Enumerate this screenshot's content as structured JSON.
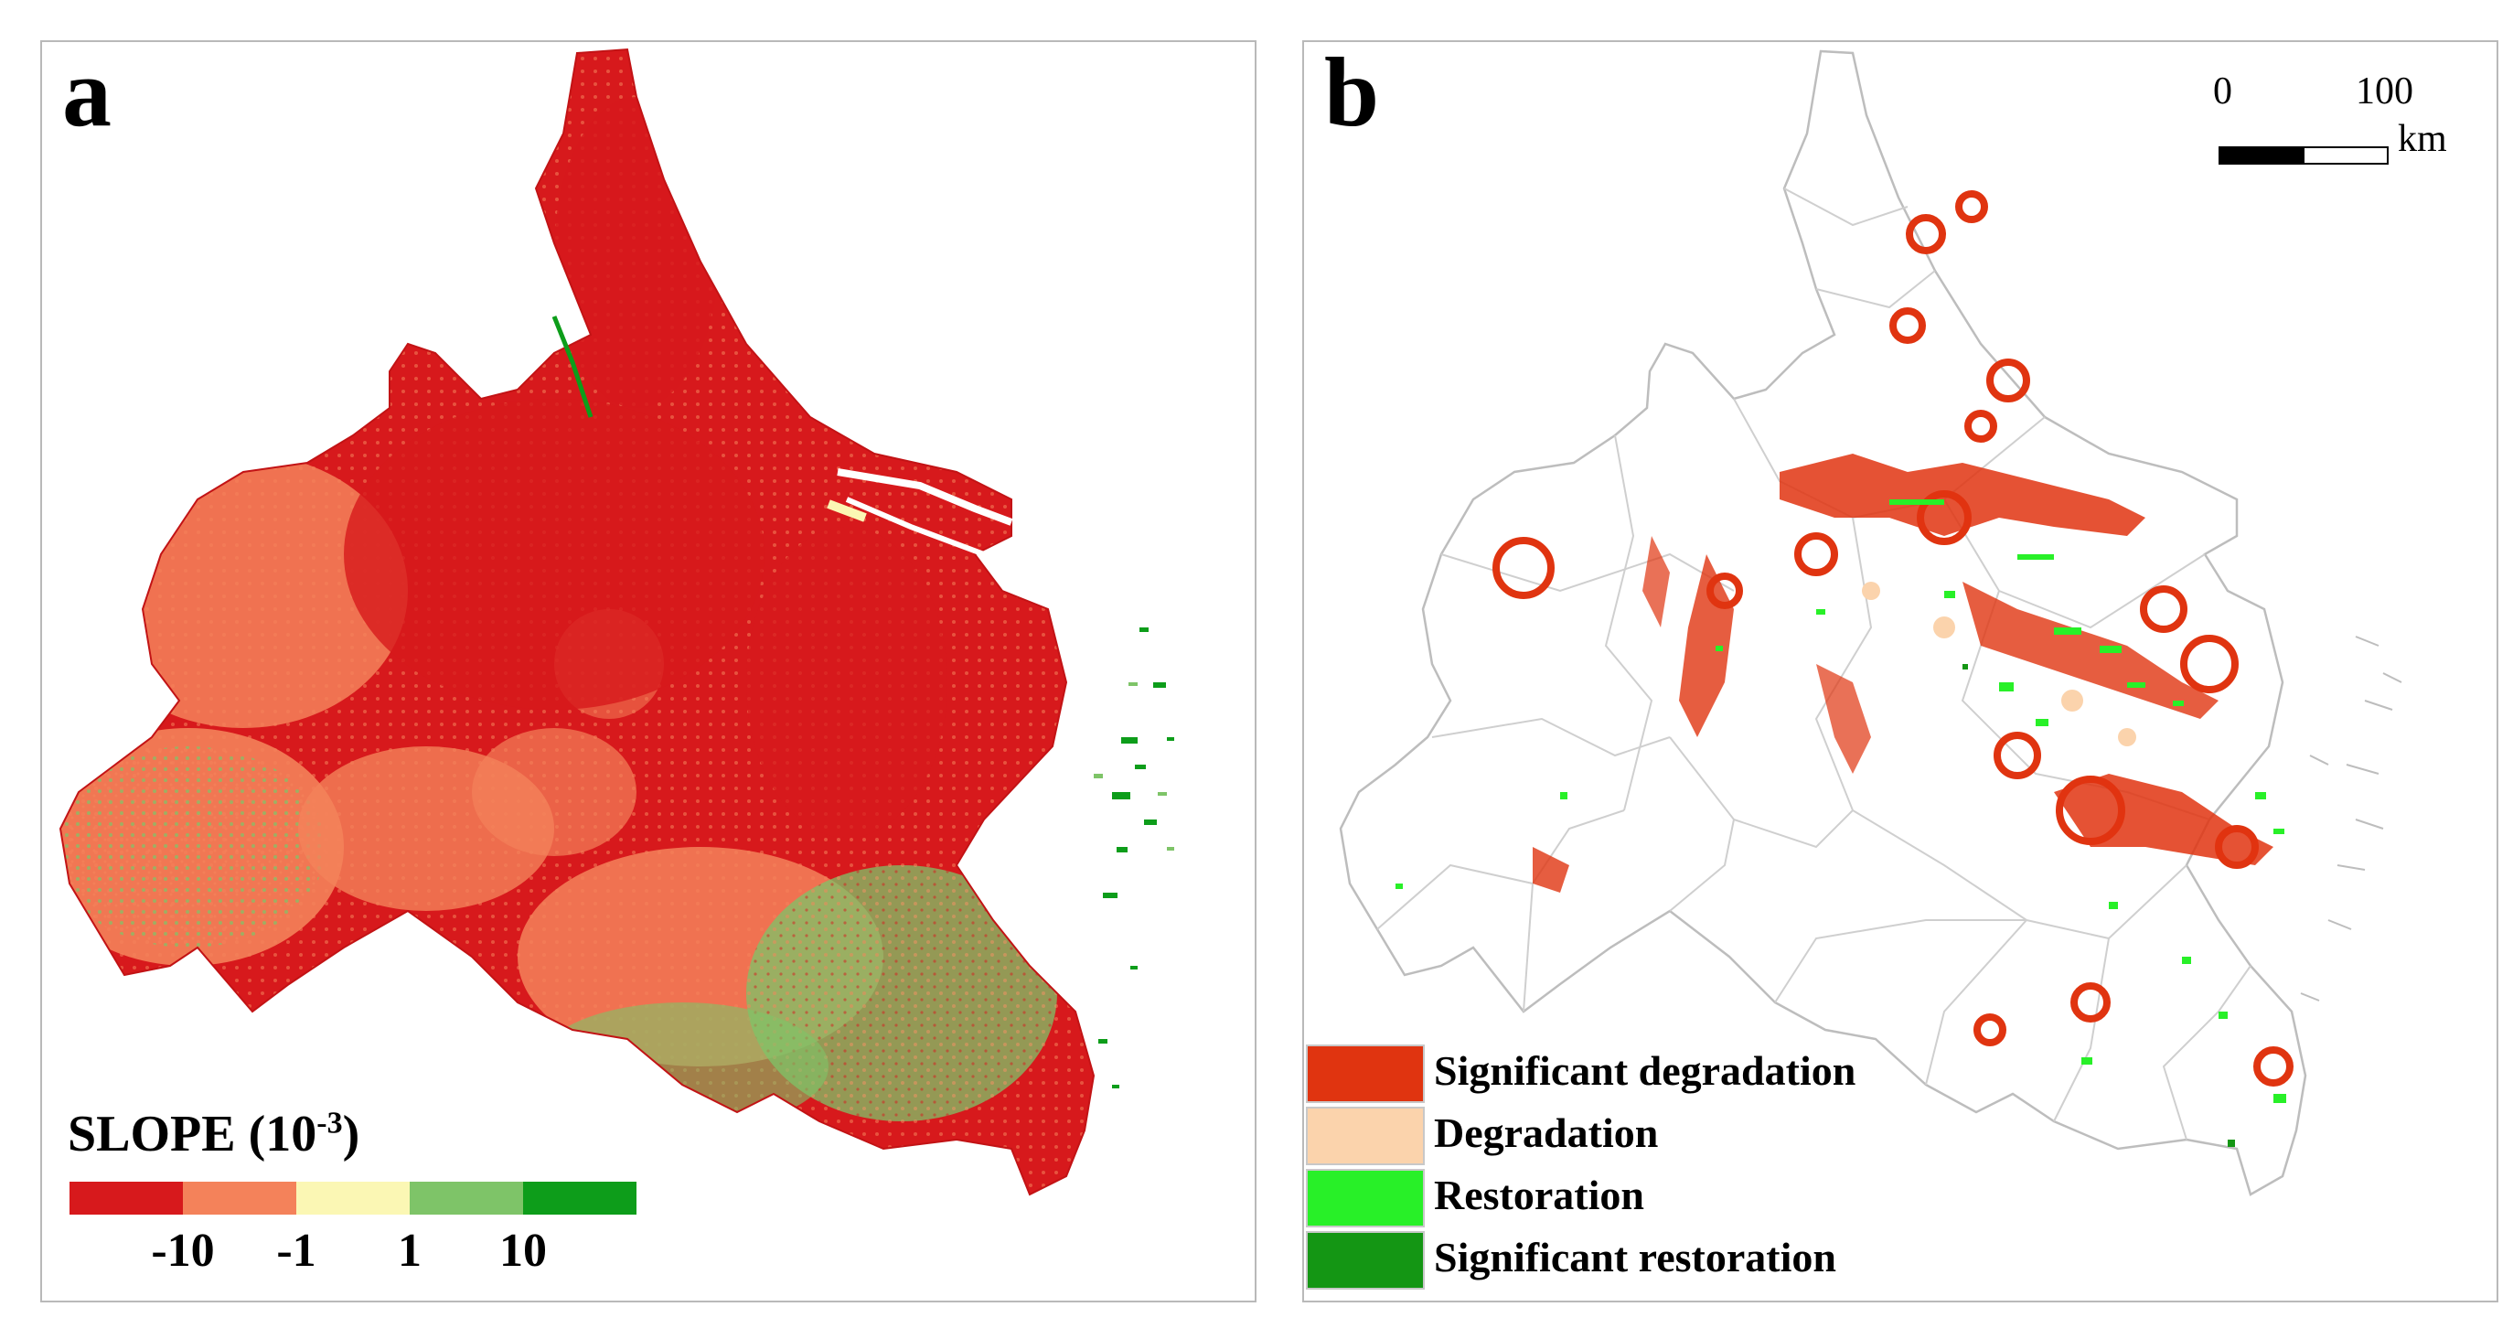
{
  "panel_a": {
    "letter": "a",
    "legend": {
      "title_main": "SLOPE (10",
      "title_sup": "-3",
      "title_close": ")",
      "colors": [
        "#d7191c",
        "#f4825a",
        "#fbf7b4",
        "#7ec468",
        "#0d9d1a"
      ],
      "tick_labels": [
        "-10",
        "-1",
        "1",
        "10"
      ]
    }
  },
  "panel_b": {
    "letter": "b",
    "scalebar": {
      "start": "0",
      "end": "100",
      "unit": "km"
    },
    "legend": [
      {
        "label": "Significant degradation",
        "color": "#e03410"
      },
      {
        "label": "Degradation",
        "color": "#fbd3ac"
      },
      {
        "label": "Restoration",
        "color": "#28f028"
      },
      {
        "label": "Significant restoration",
        "color": "#149614"
      }
    ]
  }
}
